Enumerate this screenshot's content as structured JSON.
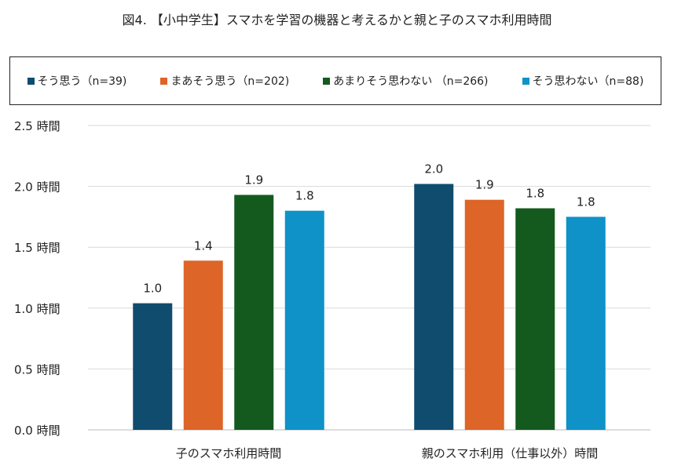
{
  "chart_data": {
    "type": "bar",
    "title": "図4. 【小中学生】スマホを学習の機器と考えるかと親と子のスマホ利用時間",
    "categories": [
      "子のスマホ利用時間",
      "親のスマホ利用（仕事以外）時間"
    ],
    "series": [
      {
        "name": "そう思う（n=39)",
        "color": "#0f4c6e",
        "values": [
          1.04,
          2.02
        ],
        "labels": [
          "1.0",
          "2.0"
        ]
      },
      {
        "name": "まあそう思う（n=202)",
        "color": "#dd6527",
        "values": [
          1.39,
          1.89
        ],
        "labels": [
          "1.4",
          "1.9"
        ]
      },
      {
        "name": "あまりそう思わない （n=266)",
        "color": "#145a1e",
        "values": [
          1.93,
          1.82
        ],
        "labels": [
          "1.9",
          "1.8"
        ]
      },
      {
        "name": "そう思わない（n=88)",
        "color": "#0e92c8",
        "values": [
          1.8,
          1.75
        ],
        "labels": [
          "1.8",
          "1.8"
        ]
      }
    ],
    "yticks": [
      "0.0 時間",
      "0.5 時間",
      "1.0 時間",
      "1.5 時間",
      "2.0 時間",
      "2.5 時間"
    ],
    "ylim": [
      0,
      2.5
    ],
    "grid": true,
    "legend_position": "top",
    "xlabel": "",
    "ylabel": ""
  }
}
